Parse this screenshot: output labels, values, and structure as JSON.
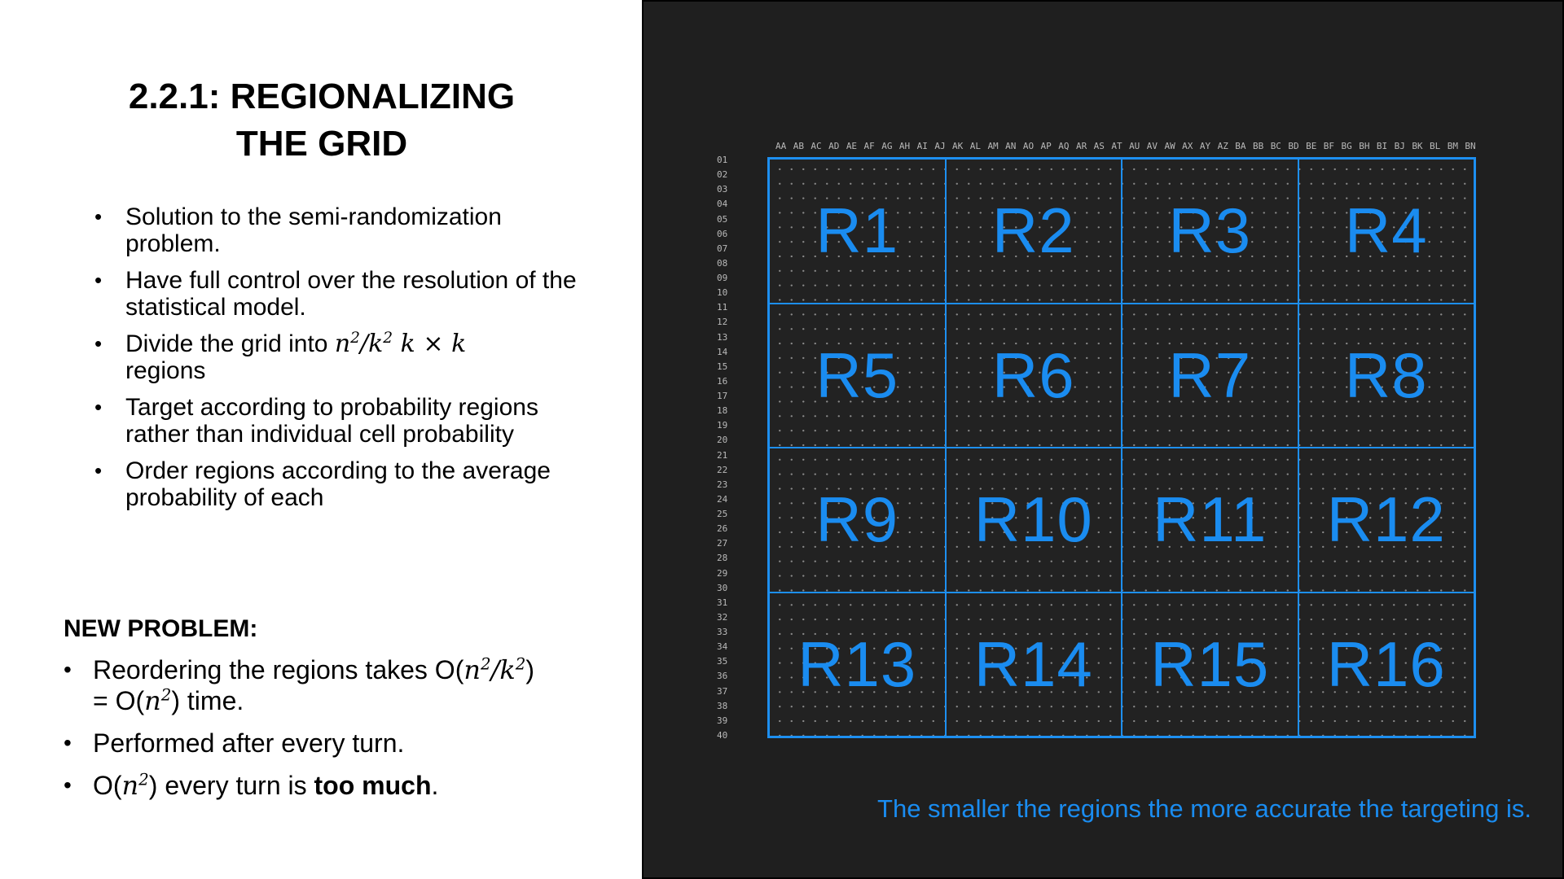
{
  "slide": {
    "title": "2.2.1: REGIONALIZING THE GRID",
    "bullets": [
      "Solution to the semi-randomization problem.",
      "Have full control over the resolution of the statistical model.",
      "Target according to probability regions rather than individual cell probability",
      "Order regions according to the average probability of each"
    ],
    "divide_bullet": {
      "prefix": "Divide the grid into ",
      "suffix": " regions"
    },
    "new_problem": {
      "heading": "NEW PROBLEM:",
      "item1_prefix": "Reordering the regions takes O(",
      "item1_mid": ")",
      "item1_line2_prefix": "= O(",
      "item1_line2_suffix": ") time.",
      "item2": "Performed after every turn.",
      "item3_prefix": "O(",
      "item3_mid": ") every turn is ",
      "item3_bold": "too much",
      "item3_end": "."
    }
  },
  "grid": {
    "column_labels": [
      "AA",
      "AB",
      "AC",
      "AD",
      "AE",
      "AF",
      "AG",
      "AH",
      "AI",
      "AJ",
      "AK",
      "AL",
      "AM",
      "AN",
      "AO",
      "AP",
      "AQ",
      "AR",
      "AS",
      "AT",
      "AU",
      "AV",
      "AW",
      "AX",
      "AY",
      "AZ",
      "BA",
      "BB",
      "BC",
      "BD",
      "BE",
      "BF",
      "BG",
      "BH",
      "BI",
      "BJ",
      "BK",
      "BL",
      "BM",
      "BN"
    ],
    "row_labels": [
      "01",
      "02",
      "03",
      "04",
      "05",
      "06",
      "07",
      "08",
      "09",
      "10",
      "11",
      "12",
      "13",
      "14",
      "15",
      "16",
      "17",
      "18",
      "19",
      "20",
      "21",
      "22",
      "23",
      "24",
      "25",
      "26",
      "27",
      "28",
      "29",
      "30",
      "31",
      "32",
      "33",
      "34",
      "35",
      "36",
      "37",
      "38",
      "39",
      "40"
    ],
    "regions": [
      "R1",
      "R2",
      "R3",
      "R4",
      "R5",
      "R6",
      "R7",
      "R8",
      "R9",
      "R10",
      "R11",
      "R12",
      "R13",
      "R14",
      "R15",
      "R16"
    ],
    "caption": "The smaller the regions the more accurate the targeting is."
  },
  "colors": {
    "panel_bg": "#1f1f1f",
    "accent_blue": "#1a8cf0"
  }
}
